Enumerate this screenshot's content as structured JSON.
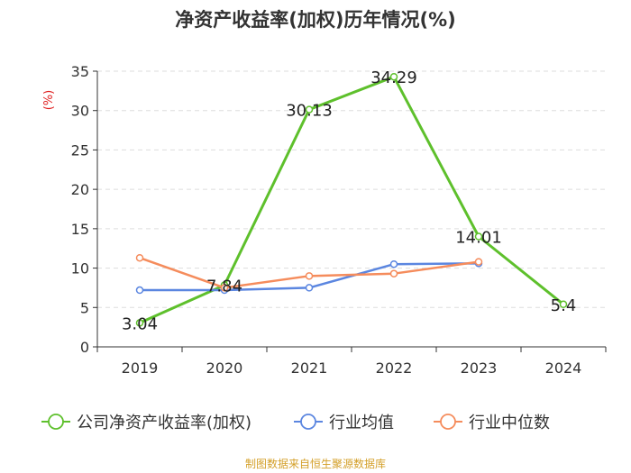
{
  "chart_data": {
    "type": "line",
    "title": "净资产收益率(加权)历年情况(%)",
    "ylabel": "(%)",
    "xlabel": "",
    "categories": [
      "2019",
      "2020",
      "2021",
      "2022",
      "2023",
      "2024"
    ],
    "ylim": [
      0,
      35
    ],
    "yticks": [
      0,
      5,
      10,
      15,
      20,
      25,
      30,
      35
    ],
    "grid": true,
    "legend_position": "bottom",
    "series": [
      {
        "name": "公司净资产收益率(加权)",
        "color": "#5ec02c",
        "values": [
          3.04,
          7.84,
          30.13,
          34.29,
          14.01,
          5.4
        ],
        "labels": [
          "3.04",
          "7.84",
          "30.13",
          "34.29",
          "14.01",
          "5.4"
        ]
      },
      {
        "name": "行业均值",
        "color": "#5b86e0",
        "values": [
          7.2,
          7.2,
          7.5,
          10.5,
          10.6,
          null
        ]
      },
      {
        "name": "行业中位数",
        "color": "#f58c5c",
        "values": [
          11.3,
          7.5,
          9.0,
          9.3,
          10.8,
          null
        ]
      }
    ]
  },
  "source": "制图数据来自恒生聚源数据库"
}
